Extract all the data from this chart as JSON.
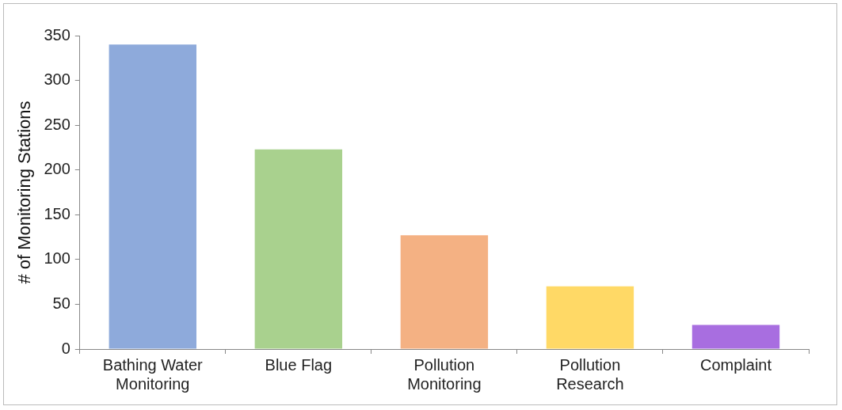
{
  "chart_data": {
    "type": "bar",
    "ylabel": "# of Monitoring Stations",
    "categories": [
      "Bathing Water\nMonitoring",
      "Blue Flag",
      "Pollution\nMonitoring",
      "Pollution\nResearch",
      "Complaint"
    ],
    "values": [
      340,
      223,
      127,
      70,
      27
    ],
    "colors": [
      "#8eaadb",
      "#a9d18e",
      "#f4b183",
      "#ffd966",
      "#a86ee0"
    ],
    "ylim": [
      0,
      350
    ],
    "yticks": [
      0,
      50,
      100,
      150,
      200,
      250,
      300,
      350
    ],
    "grid": false,
    "legend": false
  }
}
